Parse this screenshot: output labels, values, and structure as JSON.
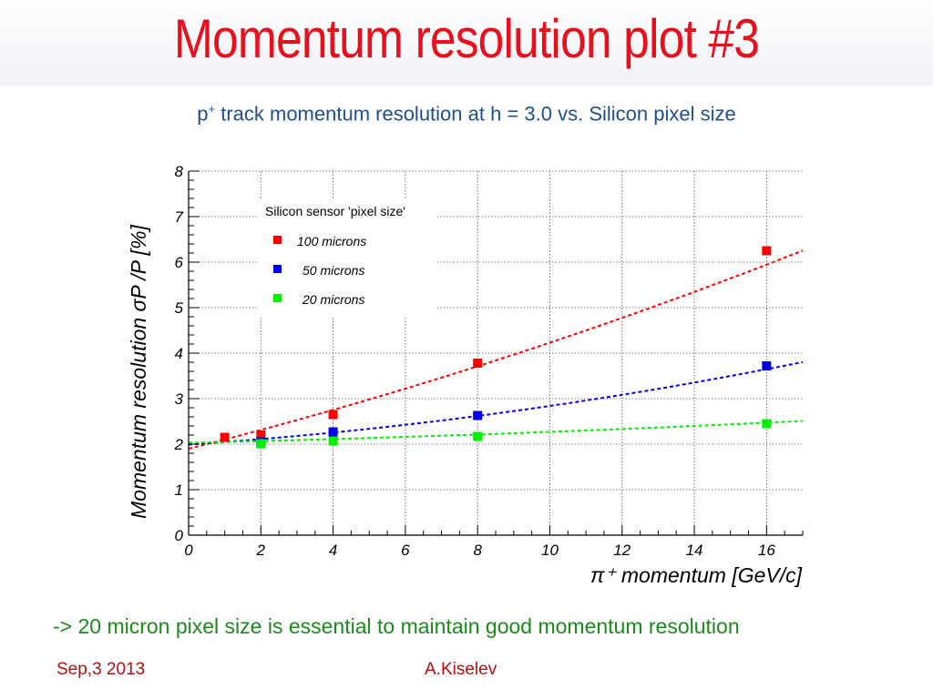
{
  "slide": {
    "title": "Momentum resolution plot #3",
    "subtitle_prefix": "p",
    "subtitle_sup": "+",
    "subtitle_rest": " track momentum resolution at h = 3.0 vs. Silicon pixel size",
    "conclusion": "-> 20 micron pixel size is essential to maintain good momentum resolution",
    "footer_date": "Sep,3 2013",
    "footer_author": "A.Kiselev"
  },
  "chart_data": {
    "type": "scatter",
    "xlabel": "π⁺ momentum [GeV/c]",
    "ylabel": "Momentum resolution   σP /P  [%]",
    "xlim": [
      0,
      17
    ],
    "ylim": [
      0,
      8
    ],
    "xticks": [
      0,
      2,
      4,
      6,
      8,
      10,
      12,
      14,
      16
    ],
    "yticks": [
      0,
      1,
      2,
      3,
      4,
      5,
      6,
      7,
      8
    ],
    "grid": true,
    "legend_title": "Silicon sensor 'pixel size'",
    "legend_position": "top-left",
    "series": [
      {
        "name": "100 microns",
        "color": "#ff0000",
        "x": [
          1,
          2,
          4,
          8,
          16
        ],
        "y": [
          2.15,
          2.2,
          2.65,
          3.78,
          6.25
        ],
        "fit": {
          "x": [
            0,
            17
          ],
          "a": 1.9,
          "b": 0.2,
          "c": 0.0033
        }
      },
      {
        "name": "50 microns",
        "color": "#0000ee",
        "x": [
          2,
          4,
          8,
          16
        ],
        "y": [
          2.05,
          2.27,
          2.63,
          3.72
        ],
        "fit": {
          "x": [
            0,
            17
          ],
          "a": 1.99,
          "b": 0.054,
          "c": 0.0031
        }
      },
      {
        "name": "20 microns",
        "color": "#00ee00",
        "x": [
          2,
          4,
          8,
          16
        ],
        "y": [
          2.01,
          2.07,
          2.17,
          2.45
        ],
        "fit": {
          "x": [
            0,
            17
          ],
          "a": 2.03,
          "b": 0.018,
          "c": 0.0006
        }
      }
    ]
  }
}
